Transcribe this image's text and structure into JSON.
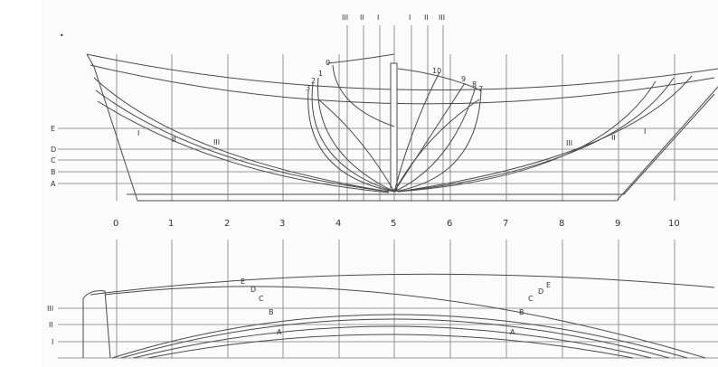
{
  "colors": {
    "background": "#ffffff",
    "paper": "#fbfbfb",
    "line": "#4a4a4a",
    "grid": "#7a7a7a",
    "text": "#333333"
  },
  "body_plan": {
    "buttock_labels": [
      "III",
      "II",
      "I",
      "I",
      "II",
      "III"
    ],
    "aft_section_labels": [
      "0",
      "1",
      "2",
      "3"
    ],
    "fwd_section_labels": [
      "10",
      "9",
      "8",
      "7"
    ]
  },
  "profile": {
    "waterline_labels": [
      "E",
      "D",
      "C",
      "B",
      "A"
    ],
    "aft_buttock_labels": [
      "I",
      "II",
      "III"
    ],
    "fwd_buttock_labels": [
      "III",
      "II",
      "I"
    ]
  },
  "stations": {
    "labels": [
      "0",
      "1",
      "2",
      "3",
      "4",
      "5",
      "6",
      "7",
      "8",
      "9",
      "10"
    ]
  },
  "half_breadth": {
    "buttock_labels": [
      "III",
      "II",
      "I"
    ],
    "aft_waterline_labels": [
      "E",
      "D",
      "C",
      "B",
      "A"
    ],
    "fwd_waterline_labels": [
      "E",
      "D",
      "C",
      "B",
      "A"
    ]
  },
  "marks": {
    "corner_dot": "•"
  }
}
